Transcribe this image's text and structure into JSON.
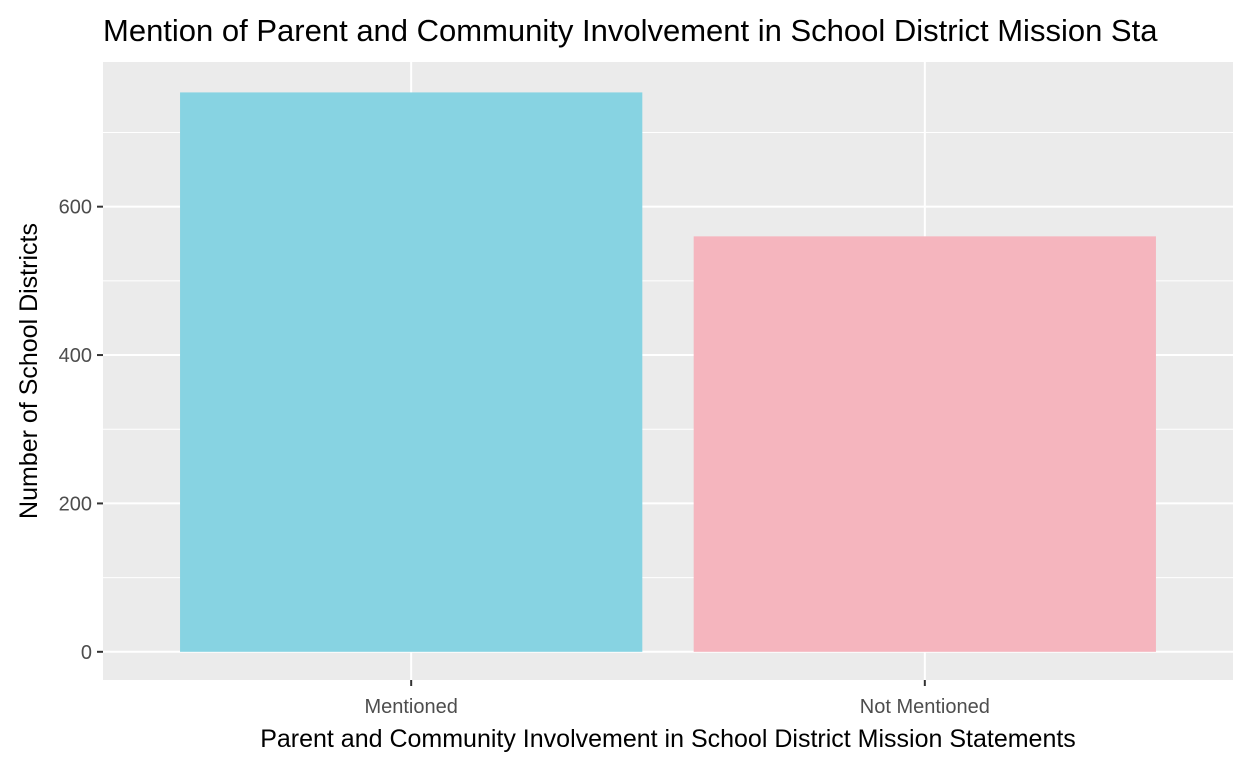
{
  "chart_data": {
    "type": "bar",
    "title": "Mention of Parent and Community Involvement in School District Mission Sta",
    "xlabel": "Parent and Community Involvement in School District Mission Statements",
    "ylabel": "Number of School Districts",
    "categories": [
      "Mentioned",
      "Not Mentioned"
    ],
    "values": [
      754,
      560
    ],
    "bar_colors": [
      "#87D3E2",
      "#F5B5BE"
    ],
    "ylim": [
      -38,
      795
    ],
    "yticks": [
      0,
      200,
      400,
      600
    ],
    "ytick_labels": [
      "0",
      "200",
      "400",
      "600"
    ],
    "grid": true,
    "legend": "none",
    "panel_background": "#EBEBEB",
    "gridline_color": "#FFFFFF"
  }
}
